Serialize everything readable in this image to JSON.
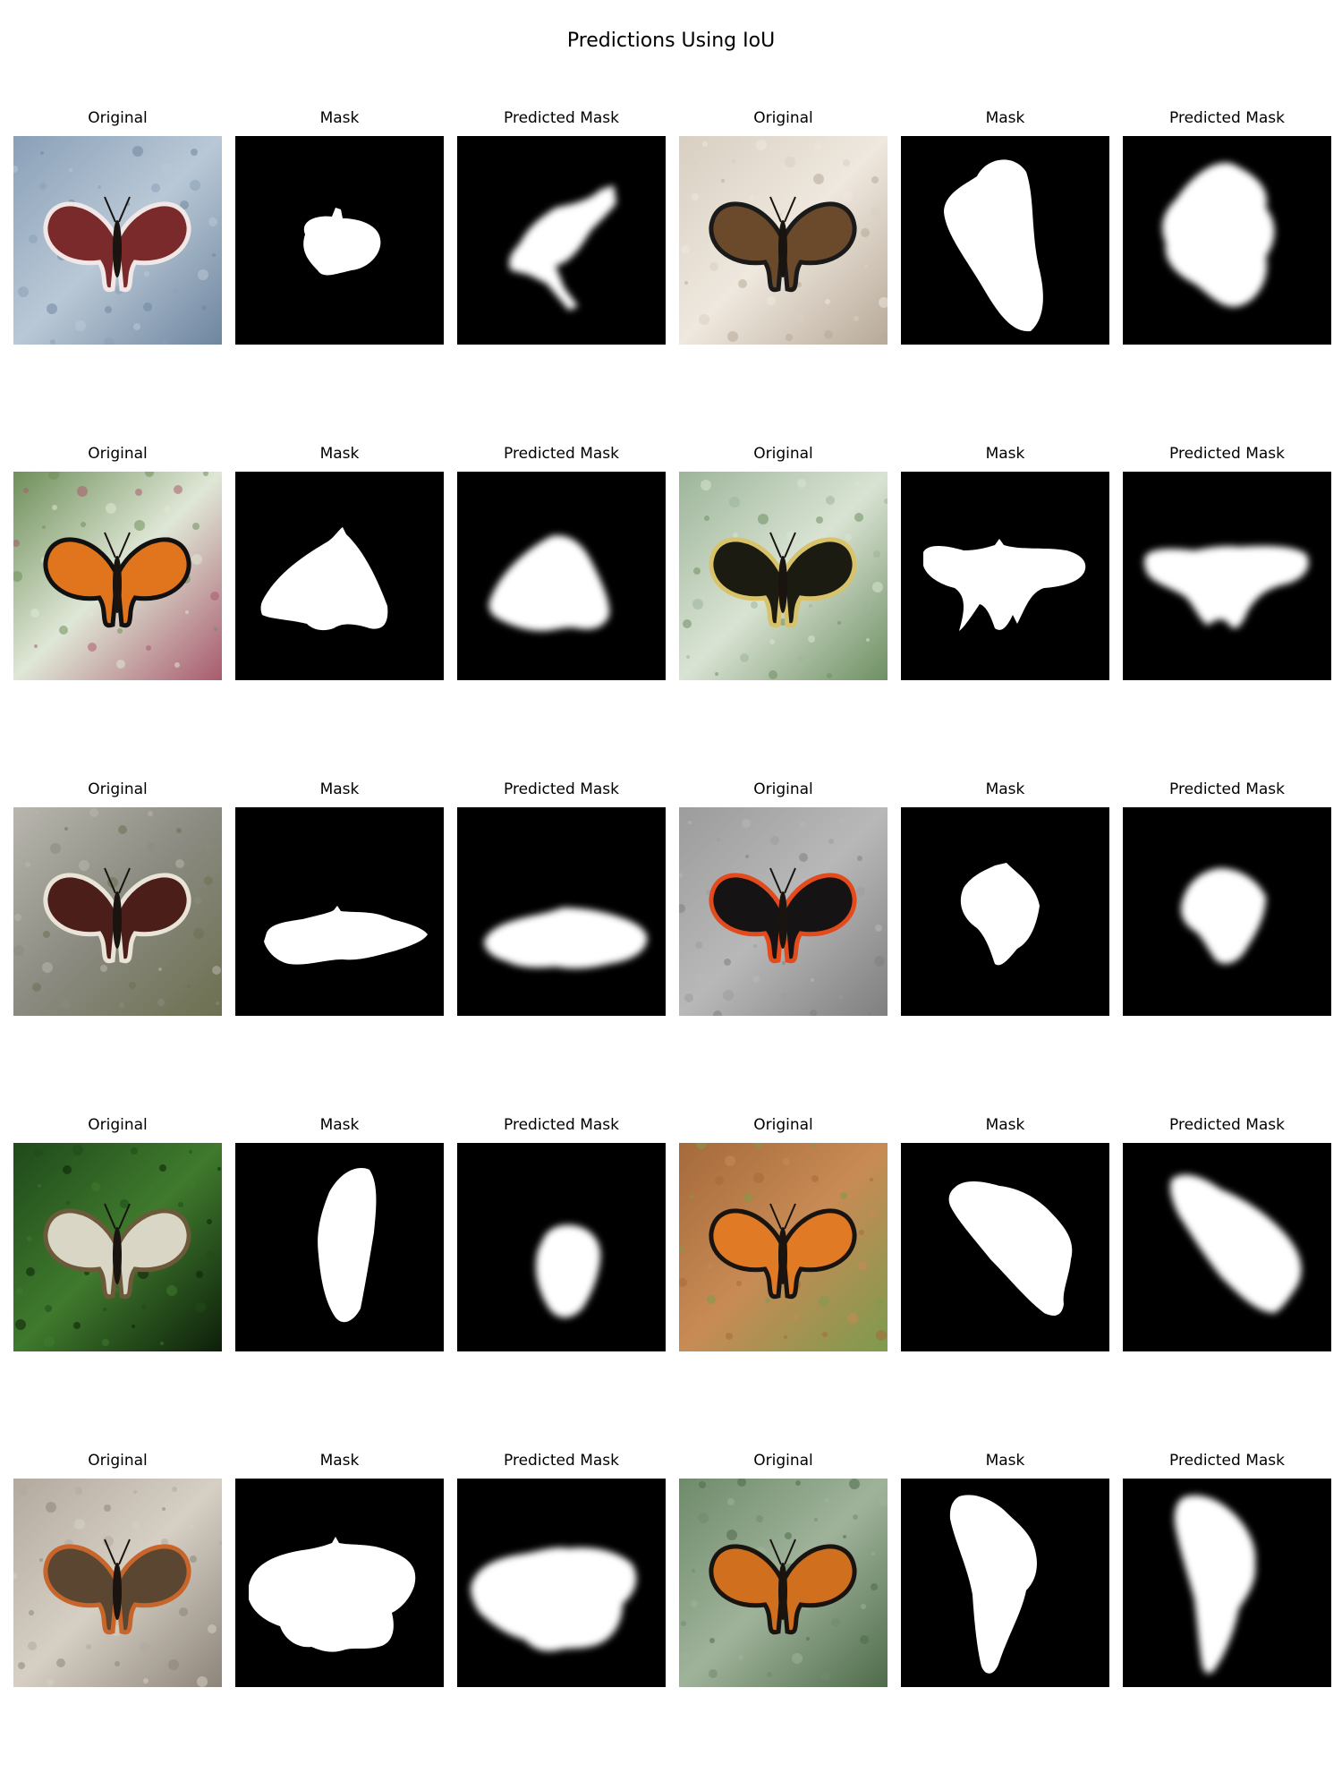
{
  "figure": {
    "title": "Predictions Using IoU"
  },
  "panel_titles": [
    "Original",
    "Mask",
    "Predicted Mask"
  ],
  "rows": [
    {
      "pairs": [
        {
          "photo": {
            "bg": [
              "#8aa0b8",
              "#b9c8d6",
              "#6f86a0"
            ],
            "wing": "#7a2a2a",
            "edge": "#f1e7e7",
            "subject": "mourning-cloak-butterfly-icon"
          },
          "mask_shape": "small-blob-center",
          "pred_shape": "blob-with-streaks"
        },
        {
          "photo": {
            "bg": [
              "#d8cfc2",
              "#efe8de",
              "#b7a998"
            ],
            "wing": "#6b4a2b",
            "edge": "#1a1a1a",
            "subject": "buckeye-butterfly-icon"
          },
          "mask_shape": "tall-diagonal",
          "pred_shape": "tall-cloud"
        }
      ]
    },
    {
      "pairs": [
        {
          "photo": {
            "bg": [
              "#6f8f5a",
              "#dfe7d6",
              "#a85b6e"
            ],
            "wing": "#e0751d",
            "edge": "#111111",
            "subject": "monarch-butterfly-icon"
          },
          "mask_shape": "triangle-wings",
          "pred_shape": "triangle-soft"
        },
        {
          "photo": {
            "bg": [
              "#9db59a",
              "#d9e3d3",
              "#6e8f63"
            ],
            "wing": "#1b1b12",
            "edge": "#d8c36b",
            "subject": "swallowtail-butterfly-icon"
          },
          "mask_shape": "wide-wings",
          "pred_shape": "wide-wings-soft"
        }
      ]
    },
    {
      "pairs": [
        {
          "photo": {
            "bg": [
              "#b8b6ae",
              "#8a8a80",
              "#6d7050"
            ],
            "wing": "#4b1e1a",
            "edge": "#e9e4d7",
            "subject": "mourning-cloak-butterfly-icon"
          },
          "mask_shape": "flat-wide",
          "pred_shape": "flat-wide-soft"
        },
        {
          "photo": {
            "bg": [
              "#9c9c9c",
              "#b8b8b8",
              "#7f7f7f"
            ],
            "wing": "#151313",
            "edge": "#e34a1c",
            "subject": "red-admiral-butterfly-icon"
          },
          "mask_shape": "small-diamond",
          "pred_shape": "small-diamond-soft"
        }
      ]
    },
    {
      "pairs": [
        {
          "photo": {
            "bg": [
              "#1f4a1a",
              "#3f7a2d",
              "#0d1f0a"
            ],
            "wing": "#d9d6c6",
            "edge": "#6b5a3a",
            "subject": "white-butterfly-icon"
          },
          "mask_shape": "vertical-oval",
          "pred_shape": "lower-blob"
        },
        {
          "photo": {
            "bg": [
              "#a56a3b",
              "#c88b55",
              "#7d9b4e"
            ],
            "wing": "#e07a24",
            "edge": "#1a1410",
            "subject": "painted-lady-butterfly-icon"
          },
          "mask_shape": "diagonal-wing",
          "pred_shape": "diagonal-wing-soft"
        }
      ]
    },
    {
      "pairs": [
        {
          "photo": {
            "bg": [
              "#b3aa9e",
              "#d6cfc4",
              "#8d857a"
            ],
            "wing": "#5b4632",
            "edge": "#c8652a",
            "subject": "buckeye-butterfly-icon"
          },
          "mask_shape": "big-butterfly",
          "pred_shape": "big-butterfly-soft"
        },
        {
          "photo": {
            "bg": [
              "#6f8a6b",
              "#9fb39a",
              "#4f6b4b"
            ],
            "wing": "#d0701e",
            "edge": "#1a1410",
            "subject": "painted-lady-butterfly-icon"
          },
          "mask_shape": "long-diagonal",
          "pred_shape": "long-diagonal-soft"
        }
      ]
    }
  ]
}
